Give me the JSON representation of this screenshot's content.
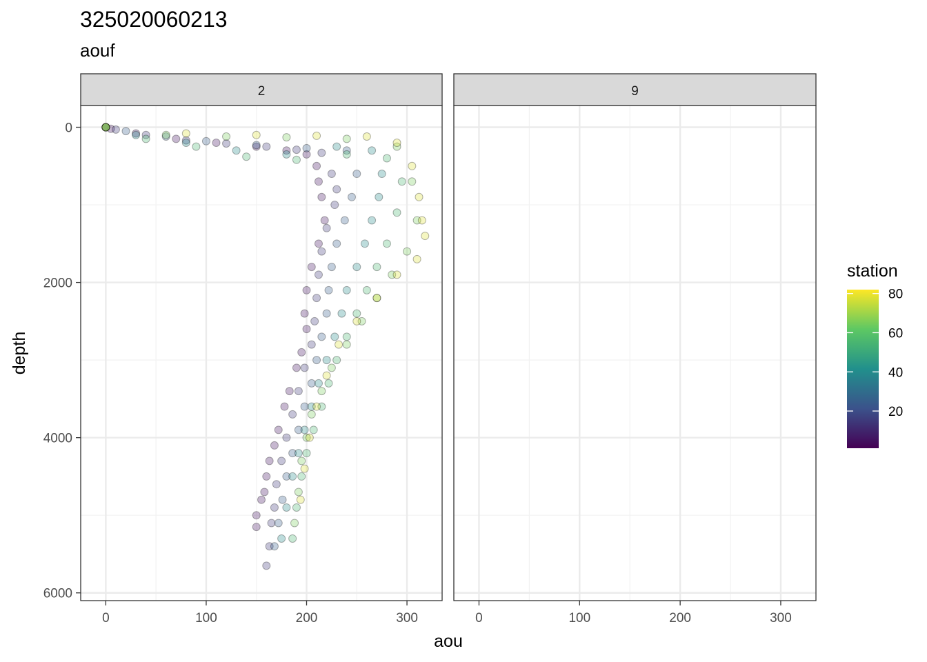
{
  "title": "325020060213",
  "subtitle": "aouf",
  "chart_data": {
    "type": "scatter",
    "xlabel": "aou",
    "ylabel": "depth",
    "xlim": [
      -25,
      335
    ],
    "ylim": [
      6100,
      -280
    ],
    "y_reversed": true,
    "x_ticks": [
      0,
      100,
      200,
      300
    ],
    "y_ticks": [
      0,
      2000,
      4000,
      6000
    ],
    "x_tick_labels": [
      "0",
      "100",
      "200",
      "300"
    ],
    "y_tick_labels": [
      "0",
      "2000",
      "4000",
      "6000"
    ],
    "grid": true,
    "facets": [
      {
        "label": "2",
        "series": [
          {
            "station": 5,
            "x": [
              0,
              5,
              30,
              70,
              110,
              150,
              180,
              200,
              210,
              212,
              215,
              218,
              212,
              205,
              200,
              198,
              200,
              195,
              190,
              183,
              178,
              172,
              168,
              163,
              160,
              158,
              155,
              150,
              150
            ],
            "y": [
              0,
              20,
              80,
              150,
              200,
              250,
              300,
              350,
              500,
              700,
              900,
              1200,
              1500,
              1800,
              2100,
              2400,
              2600,
              2900,
              3100,
              3400,
              3600,
              3900,
              4100,
              4300,
              4500,
              4700,
              4800,
              5000,
              5150
            ]
          },
          {
            "station": 15,
            "x": [
              0,
              10,
              40,
              80,
              120,
              160,
              190,
              215,
              225,
              230,
              228,
              220,
              215,
              212,
              210,
              208,
              205,
              198,
              192,
              186,
              180,
              175,
              170,
              168,
              165,
              163,
              160
            ],
            "y": [
              0,
              30,
              100,
              170,
              210,
              250,
              290,
              330,
              600,
              800,
              1000,
              1300,
              1600,
              1900,
              2200,
              2500,
              2800,
              3100,
              3400,
              3700,
              4000,
              4300,
              4600,
              4900,
              5100,
              5400,
              5650
            ]
          },
          {
            "station": 25,
            "x": [
              0,
              20,
              60,
              100,
              150,
              200,
              240,
              250,
              245,
              238,
              230,
              225,
              222,
              220,
              215,
              210,
              205,
              198,
              192,
              186,
              180,
              176,
              172,
              168
            ],
            "y": [
              0,
              50,
              120,
              180,
              230,
              270,
              300,
              600,
              900,
              1200,
              1500,
              1800,
              2100,
              2400,
              2700,
              3000,
              3300,
              3600,
              3900,
              4200,
              4500,
              4800,
              5100,
              5400
            ]
          },
          {
            "station": 40,
            "x": [
              0,
              30,
              80,
              130,
              180,
              230,
              265,
              275,
              272,
              265,
              258,
              250,
              240,
              235,
              228,
              220,
              212,
              205,
              198,
              192,
              186,
              180,
              175
            ],
            "y": [
              0,
              100,
              200,
              300,
              350,
              250,
              300,
              600,
              900,
              1200,
              1500,
              1800,
              2100,
              2400,
              2700,
              3000,
              3300,
              3600,
              3900,
              4200,
              4500,
              4900,
              5300
            ]
          },
          {
            "station": 55,
            "x": [
              0,
              40,
              90,
              140,
              190,
              240,
              280,
              295,
              290,
              280,
              270,
              260,
              250,
              240,
              230,
              222,
              215,
              207,
              200,
              195,
              190,
              186
            ],
            "y": [
              0,
              150,
              250,
              380,
              420,
              350,
              400,
              700,
              1100,
              1500,
              1800,
              2100,
              2400,
              2700,
              3000,
              3300,
              3600,
              3900,
              4200,
              4500,
              4900,
              5300
            ]
          },
          {
            "station": 65,
            "x": [
              0,
              60,
              120,
              180,
              240,
              290,
              305,
              310,
              300,
              285,
              270,
              255,
              240,
              225,
              215,
              205,
              200,
              195,
              192,
              188
            ],
            "y": [
              0,
              100,
              120,
              130,
              150,
              250,
              700,
              1200,
              1600,
              1900,
              2200,
              2500,
              2800,
              3100,
              3400,
              3700,
              4000,
              4300,
              4700,
              5100
            ]
          },
          {
            "station": 78,
            "x": [
              0,
              80,
              150,
              210,
              260,
              290,
              305,
              312,
              315,
              318,
              310,
              290,
              270,
              250,
              232,
              220,
              210,
              203,
              198,
              194
            ],
            "y": [
              0,
              80,
              100,
              110,
              120,
              200,
              500,
              900,
              1200,
              1400,
              1700,
              1900,
              2200,
              2500,
              2800,
              3200,
              3600,
              4000,
              4400,
              4800
            ]
          }
        ]
      },
      {
        "label": "9",
        "series": []
      }
    ],
    "legend": {
      "title": "station",
      "position": "right",
      "color_scale": "viridis",
      "range": [
        1,
        82
      ],
      "breaks": [
        20,
        40,
        60,
        80
      ],
      "break_labels": [
        "20",
        "40",
        "60",
        "80"
      ],
      "colors": [
        "#440154",
        "#3b528b",
        "#21908c",
        "#5dc863",
        "#fde725"
      ]
    }
  }
}
